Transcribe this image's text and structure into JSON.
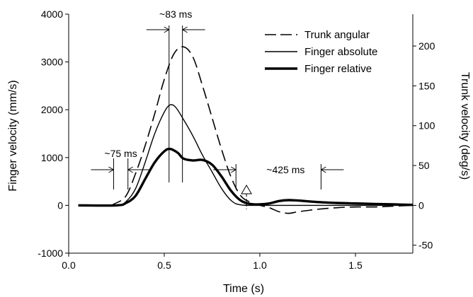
{
  "chart_data": {
    "type": "line",
    "xlabel": "Time (s)",
    "ylabel": "Finger velocity (mm/s)",
    "y2label": "Trunk velocity (deg/s)",
    "xlim": [
      0.0,
      1.8
    ],
    "ylim": [
      -1000,
      4000
    ],
    "y2lim": [
      -60,
      240
    ],
    "xticks": [
      0.0,
      0.5,
      1.0,
      1.5
    ],
    "xtick_labels": [
      "0.0",
      "0.5",
      "1.0",
      "1.5"
    ],
    "yticks": [
      -1000,
      0,
      1000,
      2000,
      3000,
      4000
    ],
    "ytick_labels": [
      "-1000",
      "0",
      "1000",
      "2000",
      "3000",
      "4000"
    ],
    "y2ticks": [
      -50,
      0,
      50,
      100,
      150,
      200
    ],
    "y2tick_labels": [
      "-50",
      "0",
      "50",
      "100",
      "150",
      "200"
    ],
    "legend_position": "top-right",
    "series": [
      {
        "name": "Trunk angular",
        "axis": "right",
        "style": "dashed",
        "x": [
          0.05,
          0.2,
          0.24,
          0.3,
          0.35,
          0.4,
          0.45,
          0.5,
          0.55,
          0.6,
          0.65,
          0.7,
          0.75,
          0.8,
          0.85,
          0.9,
          0.95,
          1.0,
          1.05,
          1.1,
          1.15,
          1.2,
          1.3,
          1.4,
          1.5,
          1.6,
          1.7,
          1.8
        ],
        "values": [
          0,
          0,
          2,
          12,
          40,
          75,
          115,
          158,
          190,
          199,
          186,
          150,
          110,
          70,
          35,
          12,
          4,
          0,
          -3,
          -8,
          -10,
          -8,
          -5,
          -3,
          -2,
          -2,
          -1,
          0
        ]
      },
      {
        "name": "Finger absolute",
        "axis": "left",
        "style": "thin",
        "x": [
          0.05,
          0.25,
          0.3,
          0.35,
          0.4,
          0.45,
          0.5,
          0.53,
          0.56,
          0.6,
          0.65,
          0.7,
          0.75,
          0.8,
          0.85,
          0.9,
          1.0,
          1.1,
          1.2,
          1.3,
          1.4,
          1.5,
          1.6,
          1.7,
          1.8
        ],
        "values": [
          0,
          0,
          80,
          350,
          900,
          1500,
          1950,
          2100,
          2050,
          1800,
          1450,
          1050,
          700,
          350,
          100,
          10,
          0,
          0,
          0,
          0,
          0,
          0,
          0,
          0,
          0
        ]
      },
      {
        "name": "Finger relative",
        "axis": "left",
        "style": "thick",
        "x": [
          0.05,
          0.25,
          0.3,
          0.35,
          0.4,
          0.45,
          0.5,
          0.53,
          0.57,
          0.6,
          0.65,
          0.7,
          0.75,
          0.8,
          0.85,
          0.9,
          0.95,
          1.0,
          1.05,
          1.1,
          1.15,
          1.2,
          1.3,
          1.4,
          1.5,
          1.6,
          1.7,
          1.8
        ],
        "values": [
          0,
          0,
          50,
          200,
          550,
          900,
          1130,
          1180,
          1100,
          980,
          940,
          950,
          850,
          600,
          300,
          100,
          30,
          20,
          40,
          90,
          110,
          100,
          70,
          50,
          40,
          30,
          20,
          10
        ]
      }
    ],
    "annotations": [
      {
        "text": "~83 ms",
        "x1": 0.525,
        "x2": 0.595
      },
      {
        "text": "~75 ms",
        "x1": 0.235,
        "x2": 0.31
      },
      {
        "text": "~425 ms",
        "x1": 0.875,
        "x2": 1.32
      }
    ],
    "marker_arrow_x": 0.93
  }
}
